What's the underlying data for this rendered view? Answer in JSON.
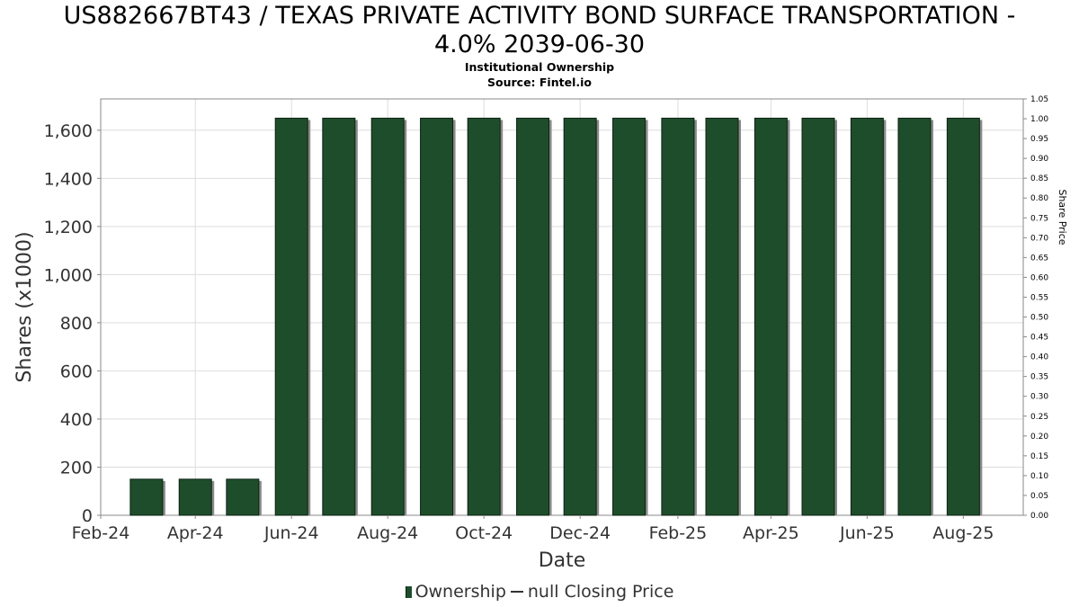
{
  "title_line1": "US882667BT43 / TEXAS PRIVATE ACTIVITY BOND SURFACE TRANSPORTATION -",
  "title_line2": "4.0% 2039-06-30",
  "subtitle": "Institutional Ownership",
  "source": "Source: Fintel.io",
  "colors": {
    "bar": "#1e4d2b",
    "bar_shadow": "#8a8a8a",
    "grid": "#dddddd",
    "axis": "#888888"
  },
  "chart_data": {
    "type": "bar",
    "title": "US882667BT43 / TEXAS PRIVATE ACTIVITY BOND SURFACE TRANSPORTATION - 4.0% 2039-06-30",
    "xlabel": "Date",
    "ylabel": "Shares (x1000)",
    "ylabel_right": "Share Price",
    "categories": [
      "2024-03-01",
      "2024-04-01",
      "2024-05-01",
      "2024-06-01",
      "2024-07-01",
      "2024-08-01",
      "2024-09-01",
      "2024-10-01",
      "2024-11-01",
      "2024-12-01",
      "2025-01-01",
      "2025-02-01",
      "2025-03-01",
      "2025-04-01",
      "2025-05-01",
      "2025-06-01",
      "2025-07-01",
      "2025-08-01"
    ],
    "series": [
      {
        "name": "Ownership",
        "values": [
          150,
          150,
          150,
          1650,
          1650,
          1650,
          1650,
          1650,
          1650,
          1650,
          1650,
          1650,
          1650,
          1650,
          1650,
          1650,
          1650,
          1650
        ]
      }
    ],
    "x_range": [
      "2024-02-01",
      "2025-09-08"
    ],
    "x_ticks": [
      {
        "date": "2024-02-01",
        "label": "Feb-24"
      },
      {
        "date": "2024-04-01",
        "label": "Apr-24"
      },
      {
        "date": "2024-06-01",
        "label": "Jun-24"
      },
      {
        "date": "2024-08-01",
        "label": "Aug-24"
      },
      {
        "date": "2024-10-01",
        "label": "Oct-24"
      },
      {
        "date": "2024-12-01",
        "label": "Dec-24"
      },
      {
        "date": "2025-02-01",
        "label": "Feb-25"
      },
      {
        "date": "2025-04-01",
        "label": "Apr-25"
      },
      {
        "date": "2025-06-01",
        "label": "Jun-25"
      },
      {
        "date": "2025-08-01",
        "label": "Aug-25"
      }
    ],
    "ylim": [
      0,
      1730
    ],
    "y_ticks": [
      0,
      200,
      400,
      600,
      800,
      1000,
      1200,
      1400,
      1600
    ],
    "y_tick_labels": [
      "0",
      "200",
      "400",
      "600",
      "800",
      "1,000",
      "1,200",
      "1,400",
      "1,600"
    ],
    "y2lim": [
      0,
      1.05
    ],
    "y2_tick_labels": [
      "0.00",
      "0.05",
      "0.10",
      "0.15",
      "0.20",
      "0.25",
      "0.30",
      "0.35",
      "0.40",
      "0.45",
      "0.50",
      "0.55",
      "0.60",
      "0.65",
      "0.70",
      "0.75",
      "0.80",
      "0.85",
      "0.90",
      "0.95",
      "1.00",
      "1.05"
    ],
    "grid": true,
    "legend": {
      "placement": "bottom",
      "items": [
        "Ownership",
        "null Closing Price"
      ]
    }
  }
}
